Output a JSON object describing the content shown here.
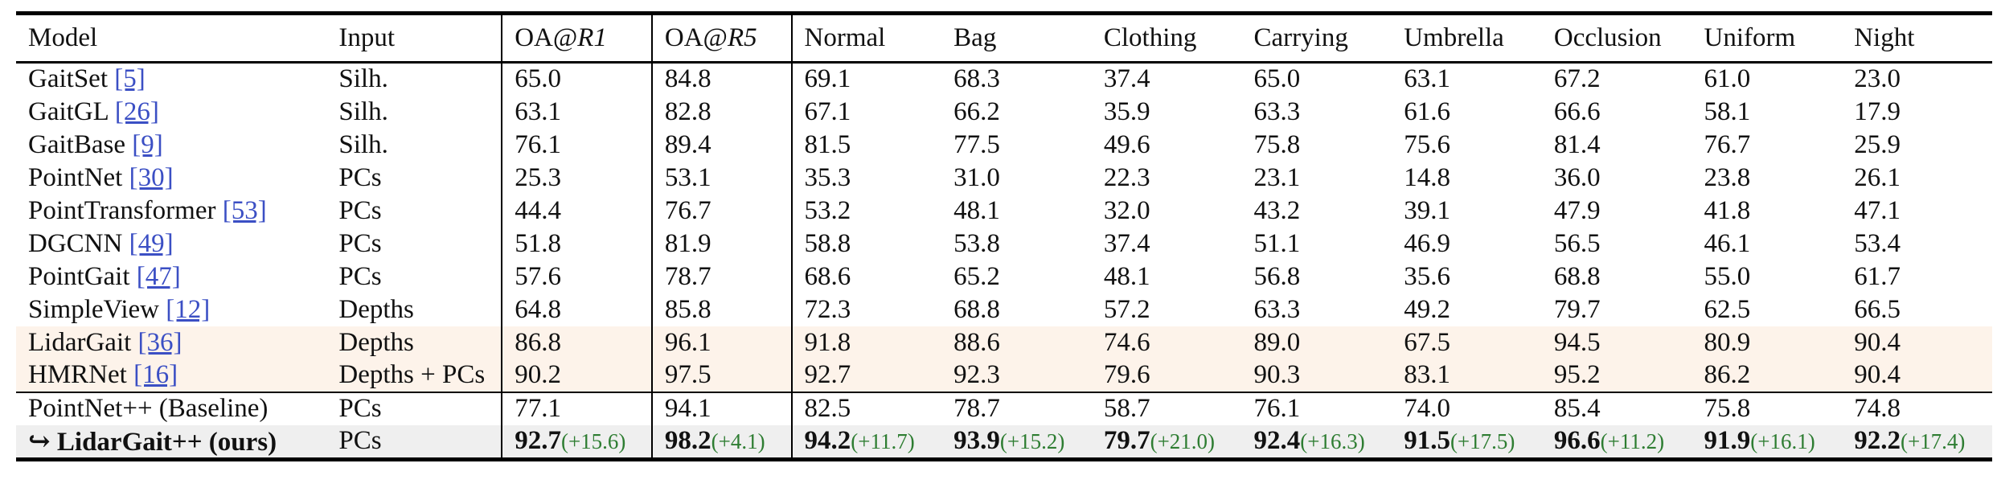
{
  "header": {
    "model": "Model",
    "input": "Input",
    "oa_r1_prefix": "OA@",
    "oa_r1_suffix": "R1",
    "oa_r5_prefix": "OA@",
    "oa_r5_suffix": "R5",
    "conditions": [
      "Normal",
      "Bag",
      "Clothing",
      "Carrying",
      "Umbrella",
      "Occlusion",
      "Uniform",
      "Night"
    ]
  },
  "rows": [
    {
      "model": "GaitSet ",
      "ref": "[5]",
      "input": "Silh.",
      "values": [
        "65.0",
        "84.8",
        "69.1",
        "68.3",
        "37.4",
        "65.0",
        "63.1",
        "67.2",
        "61.0",
        "23.0"
      ]
    },
    {
      "model": "GaitGL ",
      "ref": "[26]",
      "input": "Silh.",
      "values": [
        "63.1",
        "82.8",
        "67.1",
        "66.2",
        "35.9",
        "63.3",
        "61.6",
        "66.6",
        "58.1",
        "17.9"
      ]
    },
    {
      "model": "GaitBase ",
      "ref": "[9]",
      "input": "Silh.",
      "values": [
        "76.1",
        "89.4",
        "81.5",
        "77.5",
        "49.6",
        "75.8",
        "75.6",
        "81.4",
        "76.7",
        "25.9"
      ]
    },
    {
      "model": "PointNet ",
      "ref": "[30]",
      "input": "PCs",
      "values": [
        "25.3",
        "53.1",
        "35.3",
        "31.0",
        "22.3",
        "23.1",
        "14.8",
        "36.0",
        "23.8",
        "26.1"
      ]
    },
    {
      "model": "PointTransformer ",
      "ref": "[53]",
      "input": "PCs",
      "values": [
        "44.4",
        "76.7",
        "53.2",
        "48.1",
        "32.0",
        "43.2",
        "39.1",
        "47.9",
        "41.8",
        "47.1"
      ]
    },
    {
      "model": "DGCNN ",
      "ref": "[49]",
      "input": "PCs",
      "values": [
        "51.8",
        "81.9",
        "58.8",
        "53.8",
        "37.4",
        "51.1",
        "46.9",
        "56.5",
        "46.1",
        "53.4"
      ]
    },
    {
      "model": "PointGait ",
      "ref": "[47]",
      "input": "PCs",
      "values": [
        "57.6",
        "78.7",
        "68.6",
        "65.2",
        "48.1",
        "56.8",
        "35.6",
        "68.8",
        "55.0",
        "61.7"
      ]
    },
    {
      "model": "SimpleView ",
      "ref": "[12]",
      "input": "Depths",
      "values": [
        "64.8",
        "85.8",
        "72.3",
        "68.8",
        "57.2",
        "63.3",
        "49.2",
        "79.7",
        "62.5",
        "66.5"
      ]
    },
    {
      "model": "LidarGait ",
      "ref": "[36]",
      "input": "Depths",
      "values": [
        "86.8",
        "96.1",
        "91.8",
        "88.6",
        "74.6",
        "89.0",
        "67.5",
        "94.5",
        "80.9",
        "90.4"
      ]
    },
    {
      "model": "HMRNet ",
      "ref": "[16]",
      "input": "Depths + PCs",
      "values": [
        "90.2",
        "97.5",
        "92.7",
        "92.3",
        "79.6",
        "90.3",
        "83.1",
        "95.2",
        "86.2",
        "90.4"
      ]
    },
    {
      "model": "PointNet++ (Baseline)",
      "ref": "",
      "input": "PCs",
      "values": [
        "77.1",
        "94.1",
        "82.5",
        "78.7",
        "58.7",
        "76.1",
        "74.0",
        "85.4",
        "75.8",
        "74.8"
      ]
    }
  ],
  "ours": {
    "model": "↪ LidarGait++ (ours)",
    "input": "PCs",
    "values": [
      "92.7",
      "98.2",
      "94.2",
      "93.9",
      "79.7",
      "92.4",
      "91.5",
      "96.6",
      "91.9",
      "92.2"
    ],
    "deltas": [
      "(+15.6)",
      "(+4.1)",
      "(+11.7)",
      "(+15.2)",
      "(+21.0)",
      "(+16.3)",
      "(+17.5)",
      "(+11.2)",
      "(+16.1)",
      "(+17.4)"
    ]
  },
  "colors": {
    "highlight_rows": "#fdf3ea",
    "ours_row": "#efefef",
    "reference_link": "#3b4fc4",
    "delta_text": "#2e7d32"
  }
}
